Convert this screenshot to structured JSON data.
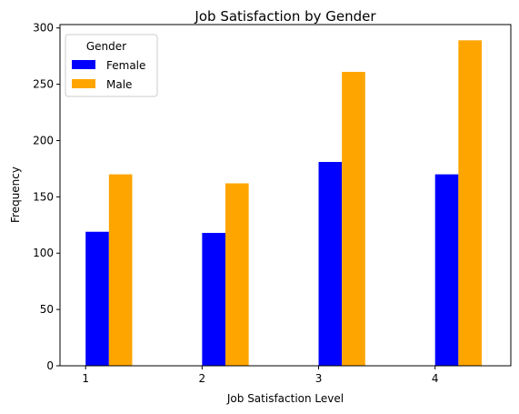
{
  "chart_data": {
    "type": "bar",
    "title": "Job Satisfaction by Gender",
    "xlabel": "Job Satisfaction Level",
    "ylabel": "Frequency",
    "categories": [
      "1",
      "2",
      "3",
      "4"
    ],
    "x": [
      1,
      2,
      3,
      4
    ],
    "xlim": [
      0.78,
      4.65
    ],
    "ylim": [
      0,
      303
    ],
    "yticks": [
      0,
      50,
      100,
      150,
      200,
      250,
      300
    ],
    "grid": false,
    "legend": {
      "title": "Gender",
      "position": "top-left"
    },
    "series": [
      {
        "name": "Female",
        "color": "#0000ff",
        "values": [
          119,
          118,
          181,
          170
        ]
      },
      {
        "name": "Male",
        "color": "#ffa500",
        "values": [
          170,
          162,
          261,
          289
        ]
      }
    ]
  }
}
